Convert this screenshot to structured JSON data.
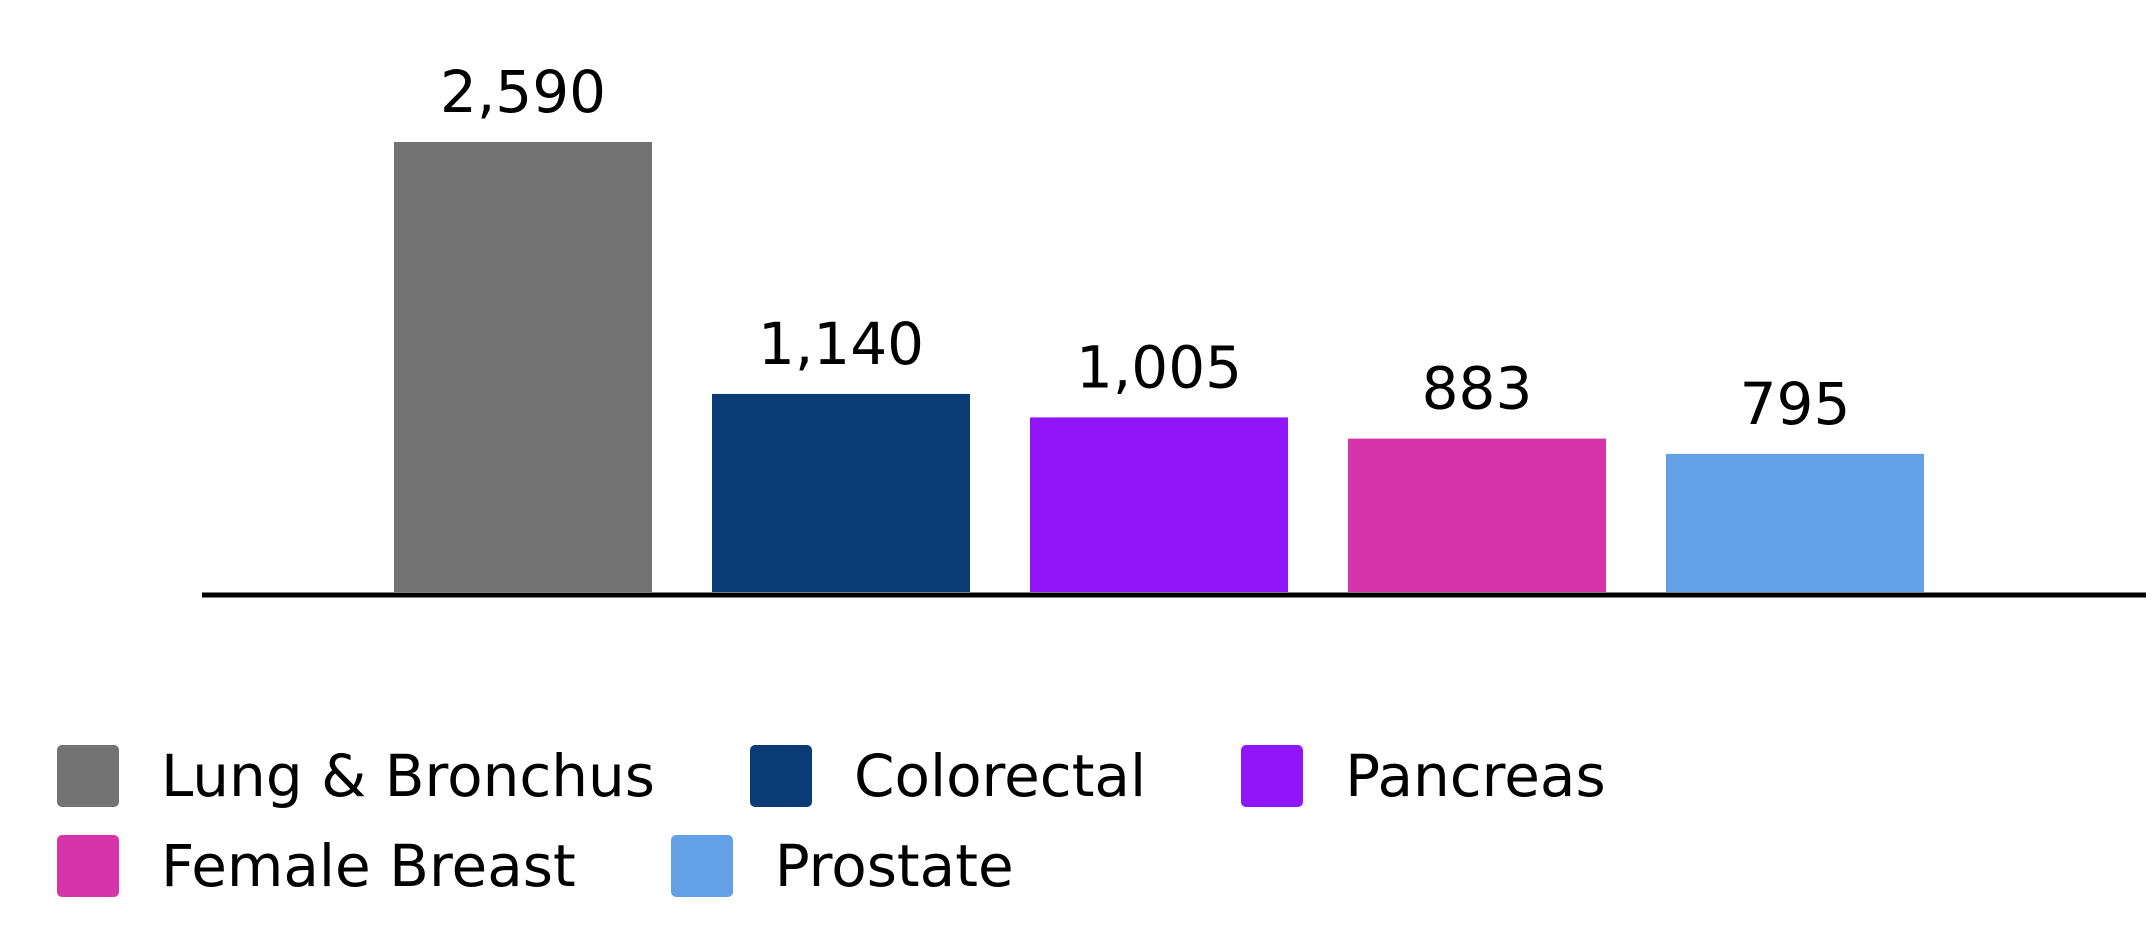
{
  "chart_data": {
    "type": "bar",
    "title": "",
    "xlabel": "",
    "ylabel": "",
    "categories": [
      "Lung & Bronchus",
      "Colorectal",
      "Pancreas",
      "Female Breast",
      "Prostate"
    ],
    "values": [
      2590,
      1140,
      1005,
      883,
      795
    ],
    "value_labels": [
      "2,590",
      "1,140",
      "1,005",
      "883",
      "795"
    ],
    "colors": [
      "#737373",
      "#0b3b75",
      "#9016f9",
      "#d535a8",
      "#64a0e6"
    ],
    "ylim": [
      0,
      2590
    ],
    "axis_color": "#000000",
    "grid": false,
    "legend_position": "bottom"
  }
}
